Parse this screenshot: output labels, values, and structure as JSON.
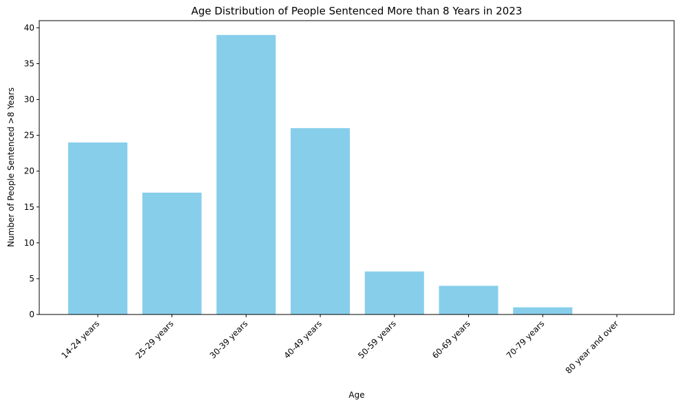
{
  "chart_data": {
    "type": "bar",
    "title": "Age Distribution of People Sentenced More than 8 Years in 2023",
    "xlabel": "Age",
    "ylabel": "Number of People Sentenced >8 Years",
    "categories": [
      "14-24 years",
      "25-29 years",
      "30-39 years",
      "40-49 years",
      "50-59 years",
      "60-69 years",
      "70-79 years",
      "80 year and over"
    ],
    "values": [
      24,
      17,
      39,
      26,
      6,
      4,
      1,
      0
    ],
    "ylim": [
      0,
      41
    ],
    "yticks": [
      0,
      5,
      10,
      15,
      20,
      25,
      30,
      35,
      40
    ],
    "bar_color": "#87CEEB",
    "grid": false,
    "legend": false
  }
}
